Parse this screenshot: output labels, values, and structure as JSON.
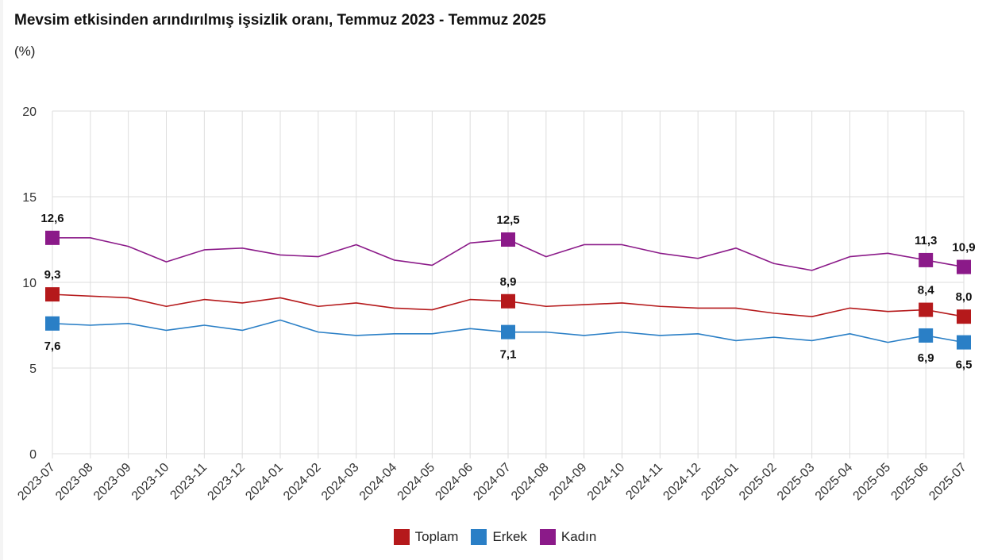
{
  "title": "Mevsim etkisinden arındırılmış işsizlik oranı, Temmuz 2023 - Temmuz 2025",
  "subtitle": "(%)",
  "chart_data": {
    "type": "line",
    "title": "Mevsim etkisinden arındırılmış işsizlik oranı, Temmuz 2023 - Temmuz 2025",
    "ylabel": "(%)",
    "ylim": [
      0,
      20
    ],
    "yticks": [
      0,
      5,
      10,
      15,
      20
    ],
    "grid": true,
    "legend_position": "bottom",
    "x": [
      "2023-07",
      "2023-08",
      "2023-09",
      "2023-10",
      "2023-11",
      "2023-12",
      "2024-01",
      "2024-02",
      "2024-03",
      "2024-04",
      "2024-05",
      "2024-06",
      "2024-07",
      "2024-08",
      "2024-09",
      "2024-10",
      "2024-11",
      "2024-12",
      "2025-01",
      "2025-02",
      "2025-03",
      "2025-04",
      "2025-05",
      "2025-06",
      "2025-07"
    ],
    "series": [
      {
        "name": "Toplam",
        "color": "#b5191b",
        "values": [
          9.3,
          9.2,
          9.1,
          8.6,
          9.0,
          8.8,
          9.1,
          8.6,
          8.8,
          8.5,
          8.4,
          9.0,
          8.9,
          8.6,
          8.7,
          8.8,
          8.6,
          8.5,
          8.5,
          8.2,
          8.0,
          8.5,
          8.3,
          8.4,
          8.0
        ],
        "labels": [
          {
            "index": 0,
            "text": "9,3",
            "side": "above"
          },
          {
            "index": 12,
            "text": "8,9",
            "side": "above"
          },
          {
            "index": 23,
            "text": "8,4",
            "side": "above"
          },
          {
            "index": 24,
            "text": "8,0",
            "side": "above"
          }
        ]
      },
      {
        "name": "Erkek",
        "color": "#2a7fc6",
        "values": [
          7.6,
          7.5,
          7.6,
          7.2,
          7.5,
          7.2,
          7.8,
          7.1,
          6.9,
          7.0,
          7.0,
          7.3,
          7.1,
          7.1,
          6.9,
          7.1,
          6.9,
          7.0,
          6.6,
          6.8,
          6.6,
          7.0,
          6.5,
          6.9,
          6.5
        ],
        "labels": [
          {
            "index": 0,
            "text": "7,6",
            "side": "below"
          },
          {
            "index": 12,
            "text": "7,1",
            "side": "below"
          },
          {
            "index": 23,
            "text": "6,9",
            "side": "below"
          },
          {
            "index": 24,
            "text": "6,5",
            "side": "below"
          }
        ]
      },
      {
        "name": "Kadın",
        "color": "#8b1a89",
        "values": [
          12.6,
          12.6,
          12.1,
          11.2,
          11.9,
          12.0,
          11.6,
          11.5,
          12.2,
          11.3,
          11.0,
          12.3,
          12.5,
          11.5,
          12.2,
          12.2,
          11.7,
          11.4,
          12.0,
          11.1,
          10.7,
          11.5,
          11.7,
          11.3,
          10.9
        ],
        "labels": [
          {
            "index": 0,
            "text": "12,6",
            "side": "above"
          },
          {
            "index": 12,
            "text": "12,5",
            "side": "above"
          },
          {
            "index": 23,
            "text": "11,3",
            "side": "above"
          },
          {
            "index": 24,
            "text": "10,9",
            "side": "above"
          }
        ]
      }
    ]
  }
}
